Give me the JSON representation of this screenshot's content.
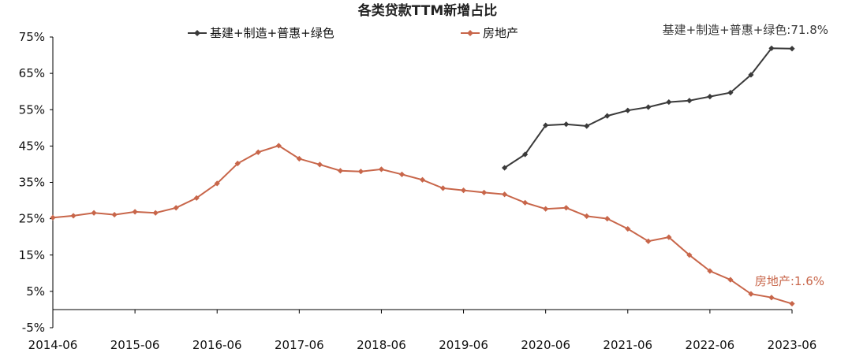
{
  "chart_data": {
    "type": "line",
    "title": "各类贷款TTM新增占比",
    "xlabel": "",
    "ylabel": "",
    "ylim": [
      -5,
      75
    ],
    "yticks": [
      -5,
      5,
      15,
      25,
      35,
      45,
      55,
      65,
      75
    ],
    "ytick_labels": [
      "-5%",
      "5%",
      "15%",
      "25%",
      "35%",
      "45%",
      "55%",
      "65%",
      "75%"
    ],
    "x_tick_labels": [
      "2014-06",
      "2015-06",
      "2016-06",
      "2017-06",
      "2018-06",
      "2019-06",
      "2020-06",
      "2021-06",
      "2022-06",
      "2023-06"
    ],
    "x_tick_quarters": [
      0,
      4,
      8,
      12,
      16,
      20,
      24,
      28,
      32,
      36
    ],
    "grid": false,
    "legend_position": "top-center",
    "series": [
      {
        "name": "基建+制造+普惠+绿色",
        "color": "#3a3a3a",
        "start_quarter": 22,
        "values": [
          39.0,
          42.7,
          50.7,
          51.0,
          50.5,
          53.3,
          54.8,
          55.7,
          57.1,
          57.5,
          58.6,
          59.7,
          64.6,
          71.9,
          71.8
        ],
        "end_label": "基建+制造+普惠+绿色:71.8%"
      },
      {
        "name": "房地产",
        "color": "#c8664a",
        "start_quarter": 0,
        "values": [
          25.3,
          25.8,
          26.6,
          26.1,
          26.9,
          26.6,
          28.0,
          30.7,
          34.7,
          40.2,
          43.3,
          45.1,
          41.5,
          39.9,
          38.2,
          38.0,
          38.6,
          37.2,
          35.7,
          33.4,
          32.8,
          32.2,
          31.7,
          29.4,
          27.7,
          28.0,
          25.7,
          25.0,
          22.2,
          18.8,
          19.9,
          15.0,
          10.6,
          8.2,
          4.3,
          3.3,
          1.6
        ],
        "end_label": "房地产:1.6%"
      }
    ]
  }
}
